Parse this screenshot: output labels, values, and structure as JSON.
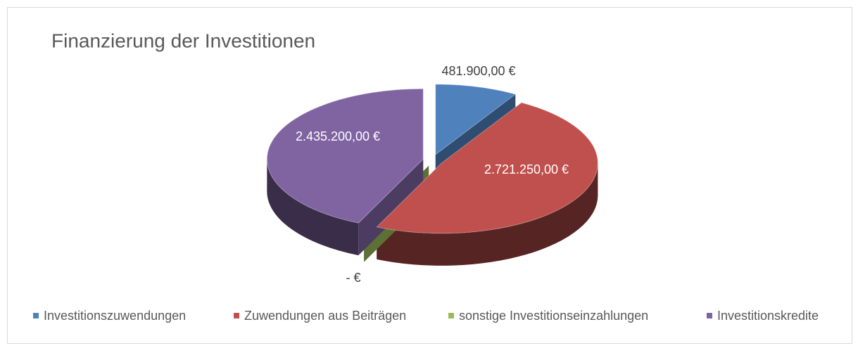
{
  "chart_data": {
    "type": "pie",
    "title": "Finanzierung der Investitionen",
    "categories": [
      "Investitionszuwendungen",
      "Zuwendungen aus Beiträgen",
      "sonstige Investitionseinzahlungen",
      "Investitionskredite"
    ],
    "values": [
      481900,
      2721250,
      0,
      2435200
    ],
    "value_labels": [
      "481.900,00 €",
      "2.721.250,00 €",
      "-   €",
      "2.435.200,00 €"
    ],
    "colors": [
      "#4f81bd",
      "#c0504d",
      "#9bbb59",
      "#8064a2"
    ],
    "legend": "bottom"
  }
}
